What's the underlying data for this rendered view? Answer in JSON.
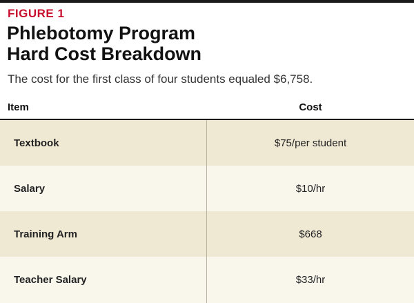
{
  "figure": {
    "label": "FIGURE 1",
    "title_line1": "Phlebotomy Program",
    "title_line2": "Hard Cost Breakdown",
    "subtitle": "The cost for the first class of four students equaled $6,758."
  },
  "table": {
    "headers": {
      "item": "Item",
      "cost": "Cost"
    },
    "rows": [
      {
        "item": "Textbook",
        "cost": "$75/per student"
      },
      {
        "item": "Salary",
        "cost": "$10/hr"
      },
      {
        "item": "Training Arm",
        "cost": "$668"
      },
      {
        "item": "Teacher Salary",
        "cost": "$33/hr"
      }
    ]
  },
  "colors": {
    "label_red": "#c8102e",
    "row_shade_dark": "#efe8d3",
    "row_shade_light": "#f9f6ec"
  }
}
